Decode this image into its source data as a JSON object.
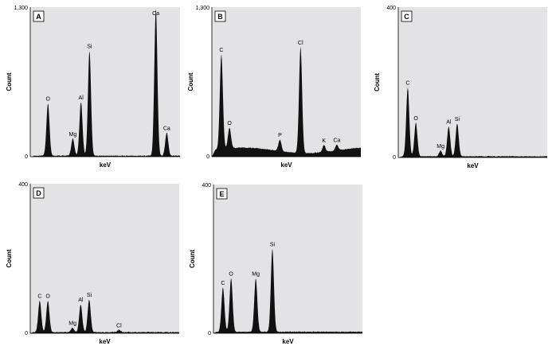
{
  "chart_data": [
    {
      "type": "area",
      "panel": "A",
      "xlabel": "keV",
      "ylabel": "Count",
      "ylim": [
        0,
        1300
      ],
      "ytick_labels": [
        "0",
        "1,300"
      ],
      "peaks": [
        {
          "label": "O",
          "x": 0.52,
          "y": 460
        },
        {
          "label": "Mg",
          "x": 1.25,
          "y": 150
        },
        {
          "label": "Al",
          "x": 1.49,
          "y": 470
        },
        {
          "label": "Si",
          "x": 1.74,
          "y": 920
        },
        {
          "label": "Ca",
          "x": 3.69,
          "y": 1290
        },
        {
          "label": "Ca",
          "x": 4.01,
          "y": 200
        }
      ],
      "background": 5
    },
    {
      "type": "area",
      "panel": "B",
      "xlabel": "keV",
      "ylabel": "Count",
      "ylim": [
        0,
        1300
      ],
      "ytick_labels": [
        "0",
        "1,300"
      ],
      "peaks": [
        {
          "label": "C",
          "x": 0.28,
          "y": 830
        },
        {
          "label": "O",
          "x": 0.52,
          "y": 180
        },
        {
          "label": "P",
          "x": 2.01,
          "y": 100
        },
        {
          "label": "Cl",
          "x": 2.62,
          "y": 930
        },
        {
          "label": "K",
          "x": 3.31,
          "y": 60
        },
        {
          "label": "Ca",
          "x": 3.69,
          "y": 50
        }
      ],
      "background": 40
    },
    {
      "type": "area",
      "panel": "C",
      "xlabel": "keV",
      "ylabel": "Count",
      "ylim": [
        0,
        400
      ],
      "ytick_labels": [
        "0",
        "400"
      ],
      "peaks": [
        {
          "label": "C",
          "x": 0.28,
          "y": 185
        },
        {
          "label": "O",
          "x": 0.52,
          "y": 90
        },
        {
          "label": "Mg",
          "x": 1.25,
          "y": 15
        },
        {
          "label": "Al",
          "x": 1.49,
          "y": 80
        },
        {
          "label": "Si",
          "x": 1.74,
          "y": 88
        }
      ],
      "background": 2
    },
    {
      "type": "area",
      "panel": "D",
      "xlabel": "keV",
      "ylabel": "Count",
      "ylim": [
        0,
        400
      ],
      "ytick_labels": [
        "0",
        "400"
      ],
      "peaks": [
        {
          "label": "C",
          "x": 0.28,
          "y": 85
        },
        {
          "label": "O",
          "x": 0.52,
          "y": 85
        },
        {
          "label": "Mg",
          "x": 1.25,
          "y": 12
        },
        {
          "label": "Al",
          "x": 1.49,
          "y": 75
        },
        {
          "label": "Si",
          "x": 1.74,
          "y": 88
        },
        {
          "label": "Cl",
          "x": 2.62,
          "y": 6
        }
      ],
      "background": 2
    },
    {
      "type": "area",
      "panel": "E",
      "xlabel": "keV",
      "ylabel": "Count",
      "ylim": [
        0,
        400
      ],
      "ytick_labels": [
        "0",
        "400"
      ],
      "peaks": [
        {
          "label": "C",
          "x": 0.28,
          "y": 120
        },
        {
          "label": "O",
          "x": 0.52,
          "y": 145
        },
        {
          "label": "Mg",
          "x": 1.25,
          "y": 145
        },
        {
          "label": "Si",
          "x": 1.74,
          "y": 225
        }
      ],
      "background": 3
    }
  ]
}
